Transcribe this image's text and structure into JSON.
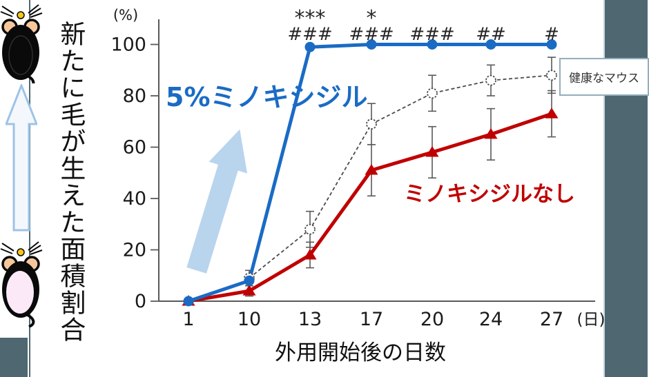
{
  "chart_data": {
    "type": "line",
    "x": [
      1,
      10,
      13,
      17,
      20,
      24,
      27
    ],
    "x_axis_label": "外用開始後の日数",
    "x_unit": "(日)",
    "y_unit": "(%)",
    "y_axis_label_vertical": "新たに毛が生えた面積割合",
    "yticks": [
      0,
      20,
      40,
      60,
      80,
      100
    ],
    "ylim": [
      0,
      100
    ],
    "grid": false,
    "legend_position": "right-overlay-box",
    "series": [
      {
        "name": "5%ミノキシジル",
        "color": "#1A6BC4",
        "marker": "filled-circle",
        "line": "solid",
        "values": [
          0,
          8,
          99,
          100,
          100,
          100,
          100
        ],
        "errors": [
          0,
          0,
          0,
          0,
          0,
          0,
          0
        ]
      },
      {
        "name": "ミノキシジルなし",
        "color": "#C00000",
        "marker": "filled-triangle",
        "line": "solid",
        "values": [
          0,
          4,
          18,
          51,
          58,
          65,
          73
        ],
        "errors": [
          0,
          2,
          5,
          10,
          10,
          10,
          9
        ]
      },
      {
        "name": "健康なマウス",
        "color": "#4A4A4A",
        "marker": "open-circle",
        "line": "dashed",
        "line_starts_at_index": 1,
        "values": [
          0,
          9,
          28,
          69,
          81,
          86,
          88
        ],
        "errors": [
          0,
          3,
          7,
          8,
          7,
          6,
          7
        ]
      }
    ],
    "significance_annotations": [
      {
        "x": 13,
        "stars": "***",
        "hashes": "###"
      },
      {
        "x": 17,
        "stars": "*",
        "hashes": "###"
      },
      {
        "x": 20,
        "stars": "",
        "hashes": "###"
      },
      {
        "x": 24,
        "stars": "",
        "hashes": "##"
      },
      {
        "x": 27,
        "stars": "",
        "hashes": "#"
      }
    ]
  },
  "icons": {
    "top_left": "haired-mouse-icon",
    "middle_left": "upward-arrow-icon",
    "bottom_left": "shaved-mouse-icon"
  },
  "decor": {
    "accent_bar_color": "#4E6770",
    "plot_arrow_fill": "#B9D4ED",
    "outline_arrow_stroke": "#9DC3E6",
    "error_bar_color": "#595959",
    "axis_color": "#595959"
  }
}
